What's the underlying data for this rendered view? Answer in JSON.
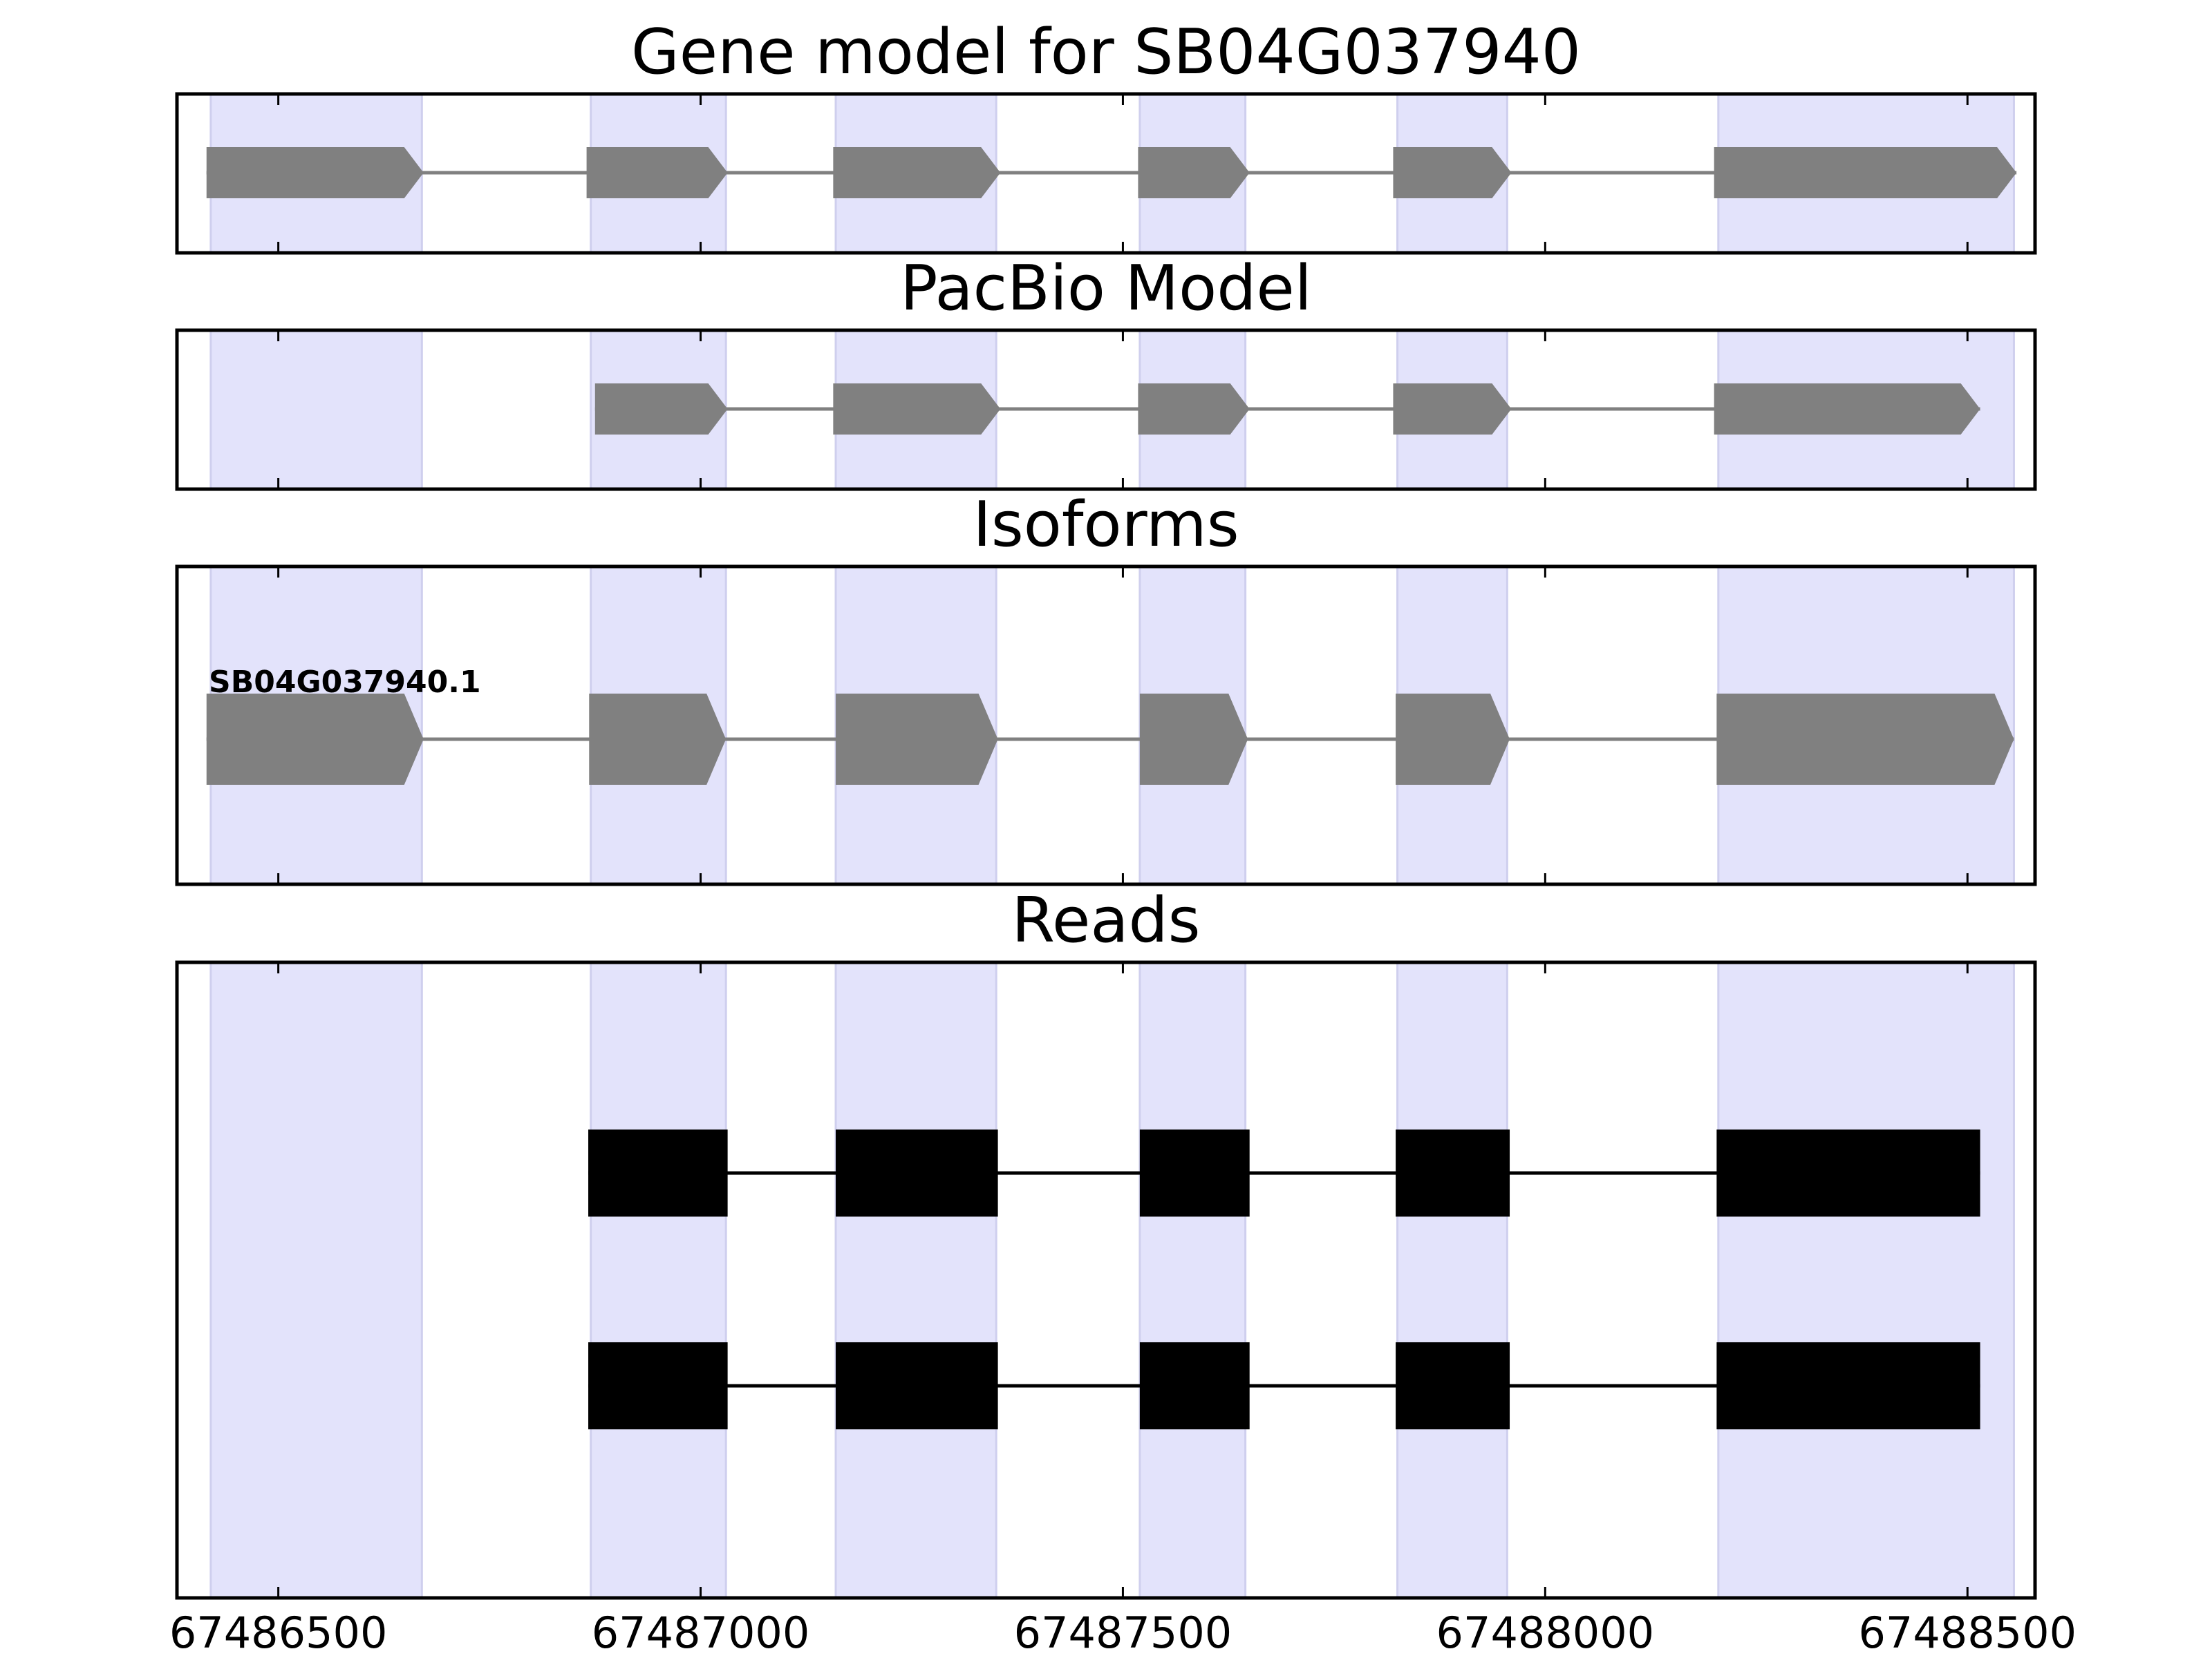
{
  "chart_data": {
    "type": "gene-structure",
    "xlim": [
      67486380,
      67488580
    ],
    "xticks": [
      67486500,
      67487000,
      67487500,
      67488000,
      67488500
    ],
    "xtick_labels": [
      "67486500",
      "67487000",
      "67487500",
      "67488000",
      "67488500"
    ],
    "shaded_regions": [
      [
        67486420,
        67486670
      ],
      [
        67486870,
        67487030
      ],
      [
        67487160,
        67487350
      ],
      [
        67487520,
        67487645
      ],
      [
        67487825,
        67487955
      ],
      [
        67488205,
        67488555
      ]
    ],
    "panels": [
      {
        "title": "Gene model for SB04G037940",
        "track_type": "arrow",
        "strand": "+",
        "models": [
          {
            "label": "",
            "exons": [
              [
                67486415,
                67486672
              ],
              [
                67486865,
                67487032
              ],
              [
                67487157,
                67487355
              ],
              [
                67487518,
                67487650
              ],
              [
                67487820,
                67487960
              ],
              [
                67488200,
                67488558
              ]
            ]
          }
        ]
      },
      {
        "title": "PacBio Model",
        "track_type": "arrow",
        "strand": "+",
        "models": [
          {
            "label": "",
            "exons": [
              [
                67486875,
                67487032
              ],
              [
                67487157,
                67487355
              ],
              [
                67487518,
                67487650
              ],
              [
                67487820,
                67487960
              ],
              [
                67488200,
                67488515
              ]
            ]
          }
        ]
      },
      {
        "title": "Isoforms",
        "track_type": "arrow",
        "strand": "+",
        "models": [
          {
            "label": "SB04G037940.1",
            "exons": [
              [
                67486415,
                67486672
              ],
              [
                67486868,
                67487030
              ],
              [
                67487160,
                67487352
              ],
              [
                67487520,
                67487648
              ],
              [
                67487823,
                67487958
              ],
              [
                67488203,
                67488555
              ]
            ]
          }
        ]
      },
      {
        "title": "Reads",
        "track_type": "block",
        "strand": "+",
        "models": [
          {
            "label": "",
            "exons": [
              [
                67486867,
                67487032
              ],
              [
                67487160,
                67487352
              ],
              [
                67487520,
                67487650
              ],
              [
                67487823,
                67487958
              ],
              [
                67488203,
                67488515
              ]
            ]
          },
          {
            "label": "",
            "exons": [
              [
                67486867,
                67487032
              ],
              [
                67487160,
                67487352
              ],
              [
                67487520,
                67487650
              ],
              [
                67487823,
                67487958
              ],
              [
                67488203,
                67488515
              ]
            ]
          }
        ]
      }
    ]
  },
  "colors": {
    "shade": "#e3e3fb",
    "shade_edge": "#cfcfee",
    "arrow_fill": "#808080",
    "intron_gray": "#808080",
    "read_fill": "#000000",
    "frame": "#000000"
  }
}
